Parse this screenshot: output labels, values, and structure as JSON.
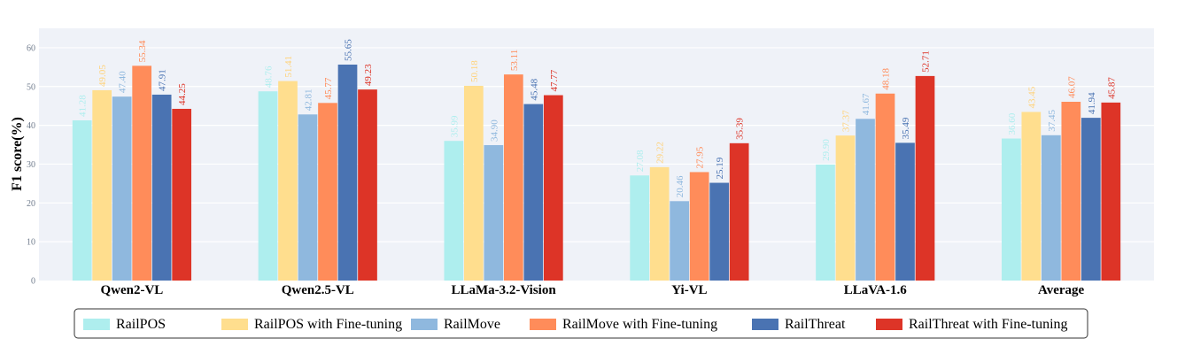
{
  "chart_data": {
    "type": "bar",
    "ylabel": "F1 score(%)",
    "ylim": [
      0,
      65
    ],
    "yticks": [
      0,
      10,
      20,
      30,
      40,
      50,
      60
    ],
    "grid": true,
    "legend_position": "bottom",
    "categories": [
      "Qwen2-VL",
      "Qwen2.5-VL",
      "LLaMa-3.2-Vision",
      "Yi-VL",
      "LLaVA-1.6",
      "Average"
    ],
    "series": [
      {
        "name": "RailPOS",
        "color": "#aeeeee",
        "label_color": "#aeeeee",
        "values": [
          41.28,
          48.76,
          35.99,
          27.08,
          29.9,
          36.6
        ]
      },
      {
        "name": "RailPOS with Fine-tuning",
        "color": "#ffde8e",
        "label_color": "#ffd27a",
        "values": [
          49.05,
          51.41,
          50.18,
          29.22,
          37.37,
          43.45
        ]
      },
      {
        "name": "RailMove",
        "color": "#8fb8de",
        "label_color": "#8fb8de",
        "values": [
          47.4,
          42.81,
          34.9,
          20.46,
          41.67,
          37.45
        ]
      },
      {
        "name": "RailMove with Fine-tuning",
        "color": "#ff8c5a",
        "label_color": "#ff8c5a",
        "values": [
          55.34,
          45.77,
          53.11,
          27.95,
          48.18,
          46.07
        ]
      },
      {
        "name": "RailThreat",
        "color": "#4a73b2",
        "label_color": "#4a73b2",
        "values": [
          47.91,
          55.65,
          45.48,
          25.19,
          35.49,
          41.94
        ]
      },
      {
        "name": "RailThreat with Fine-tuning",
        "color": "#dd3427",
        "label_color": "#dd3427",
        "values": [
          44.25,
          49.23,
          47.77,
          35.39,
          52.71,
          45.87
        ]
      }
    ],
    "value_labels": [
      [
        "41.28",
        "49.05",
        "47.40",
        "55.34",
        "47.91",
        "44.25"
      ],
      [
        "48.76",
        "51.41",
        "42.81",
        "45.77",
        "55.65",
        "49.23"
      ],
      [
        "35.99",
        "50.18",
        "34.90",
        "53.11",
        "45.48",
        "47.77"
      ],
      [
        "27.08",
        "29.22",
        "20.46",
        "27.95",
        "25.19",
        "35.39"
      ],
      [
        "29.90",
        "37.37",
        "41.67",
        "48.18",
        "35.49",
        "52.71"
      ],
      [
        "36.60",
        "43.45",
        "37.45",
        "46.07",
        "41.94",
        "45.87"
      ]
    ]
  }
}
